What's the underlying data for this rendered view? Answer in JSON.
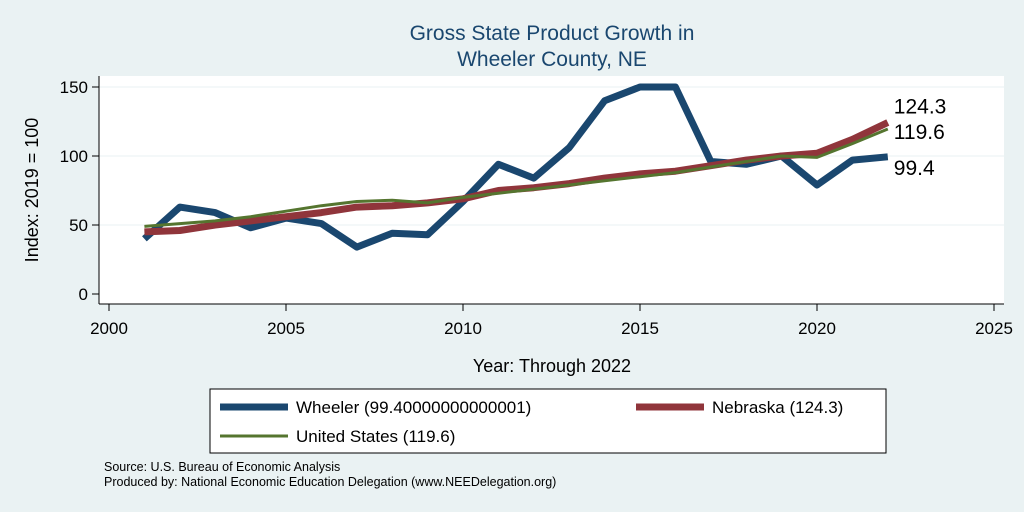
{
  "chart_data": {
    "type": "line",
    "title": [
      "Gross State Product Growth in",
      "Wheeler County, NE"
    ],
    "xlabel": "Year: Through 2022",
    "ylabel": "Index: 2019 = 100",
    "xlim": [
      2000,
      2025
    ],
    "ylim": [
      0,
      150
    ],
    "xticks": [
      2000,
      2005,
      2010,
      2015,
      2020,
      2025
    ],
    "yticks": [
      0,
      50,
      100,
      150
    ],
    "grid": "horizontal",
    "x": [
      2001,
      2002,
      2003,
      2004,
      2005,
      2006,
      2007,
      2008,
      2009,
      2010,
      2011,
      2012,
      2013,
      2014,
      2015,
      2016,
      2017,
      2018,
      2019,
      2020,
      2021,
      2022
    ],
    "series": [
      {
        "name": "Wheeler",
        "color": "#1a476f",
        "values": [
          40,
          63,
          59,
          48,
          55,
          51,
          34,
          44,
          43,
          67,
          94,
          84,
          106,
          140,
          150,
          150,
          96,
          94,
          100,
          79,
          97,
          99.4
        ]
      },
      {
        "name": "Nebraska",
        "color": "#90353b",
        "values": [
          45,
          46,
          50,
          53,
          56,
          59,
          63,
          64,
          66,
          69,
          75,
          77,
          80,
          84,
          87,
          89,
          93,
          97,
          100,
          102,
          112,
          124.3
        ]
      },
      {
        "name": "United States",
        "color": "#55752f",
        "values": [
          49,
          51,
          53,
          56,
          60,
          64,
          67,
          68,
          66,
          70,
          73,
          76,
          79,
          82,
          85,
          88,
          92,
          96,
          100,
          99,
          109,
          119.6
        ]
      }
    ],
    "end_labels": [
      "124.3",
      "119.6",
      "99.4"
    ],
    "legend": {
      "position": "bottom",
      "entries": [
        "Wheeler  (99.40000000000001)",
        "Nebraska (124.3)",
        "United States (119.6)"
      ]
    }
  },
  "footer": {
    "source": "Source: U.S. Bureau of Economic Analysis",
    "produced_by": "Produced by: National Economic Education Delegation (www.NEEDelegation.org)"
  }
}
